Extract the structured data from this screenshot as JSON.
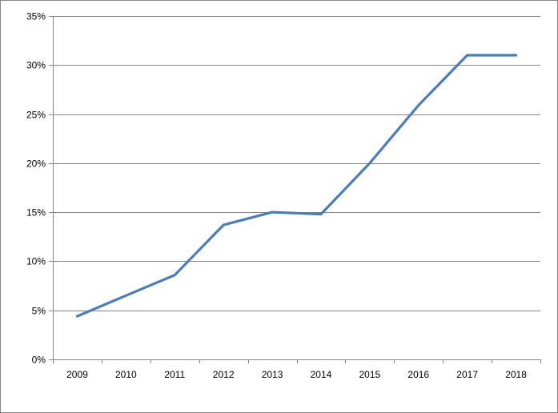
{
  "chart_data": {
    "type": "line",
    "title": "",
    "xlabel": "",
    "ylabel": "",
    "x": [
      "2009",
      "2010",
      "2011",
      "2012",
      "2013",
      "2014",
      "2015",
      "2016",
      "2017",
      "2018"
    ],
    "series": [
      {
        "values": [
          0.044,
          0.065,
          0.086,
          0.137,
          0.15,
          0.148,
          0.2,
          0.259,
          0.31,
          0.31
        ],
        "color": "#4a7ebb"
      }
    ],
    "ylim": [
      0,
      0.35
    ],
    "yticks": [
      "0%",
      "5%",
      "10%",
      "15%",
      "20%",
      "25%",
      "30%",
      "35%"
    ],
    "grid": true,
    "gridline_color": "#868686",
    "legend": "none"
  }
}
